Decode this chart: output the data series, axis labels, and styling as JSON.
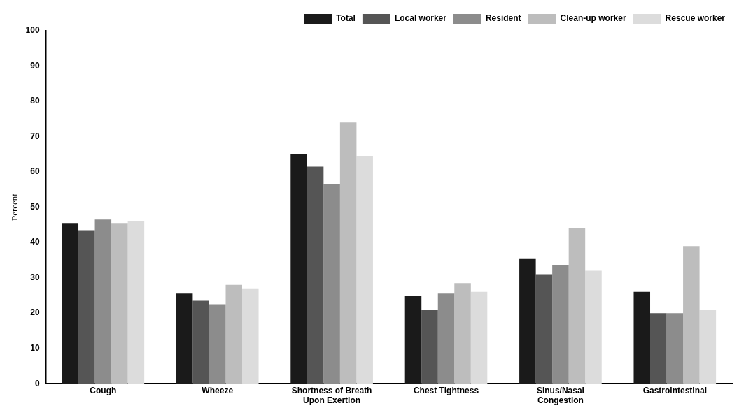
{
  "chart_data": {
    "type": "bar",
    "ylabel": "Percent",
    "categories": [
      "Cough",
      "Wheeze",
      "Shortness of Breath Upon Exertion",
      "Chest Tightness",
      "Sinus/Nasal Congestion",
      "Gastrointestinal"
    ],
    "series": [
      {
        "name": "Total",
        "color": "#1a1a1a",
        "values": [
          45.5,
          25.5,
          65,
          25,
          35.5,
          26
        ]
      },
      {
        "name": "Local worker",
        "color": "#555555",
        "values": [
          43.5,
          23.5,
          61.5,
          21,
          31,
          20
        ]
      },
      {
        "name": "Resident",
        "color": "#8c8c8c",
        "values": [
          46.5,
          22.5,
          56.5,
          25.5,
          33.5,
          20
        ]
      },
      {
        "name": "Clean-up worker",
        "color": "#bdbdbd",
        "values": [
          45.5,
          28,
          74,
          28.5,
          44,
          39
        ]
      },
      {
        "name": "Rescue worker",
        "color": "#dcdcdc",
        "values": [
          46,
          27,
          64.5,
          26,
          32,
          21
        ]
      }
    ],
    "ylim": [
      0,
      100
    ],
    "yticks": [
      0,
      10,
      20,
      30,
      40,
      50,
      60,
      70,
      80,
      90,
      100
    ],
    "grid": false,
    "legend": "top right"
  }
}
